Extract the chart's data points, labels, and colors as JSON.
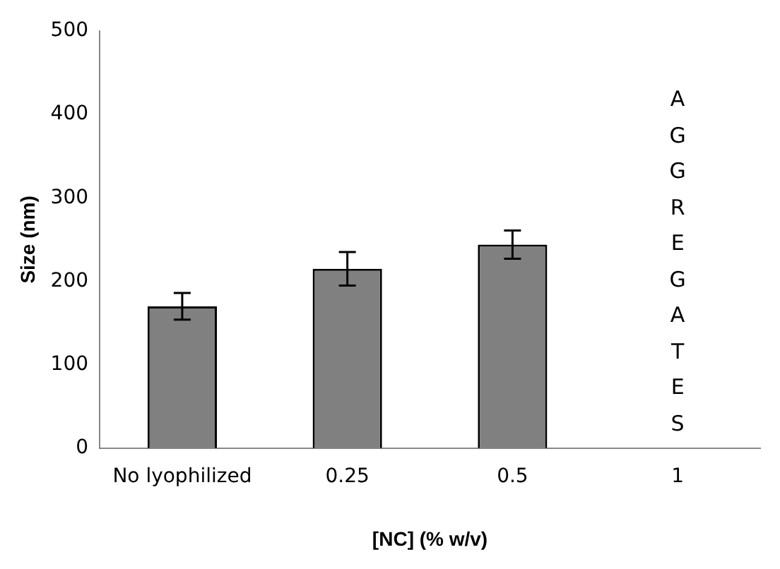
{
  "chart_data": {
    "type": "bar",
    "xlabel": "[NC] (% w/v)",
    "ylabel": "Size (nm)",
    "categories": [
      "No lyophilized",
      "0.25",
      "0.5",
      "1"
    ],
    "values": [
      170,
      215,
      244,
      null
    ],
    "errors": [
      16,
      20,
      17,
      null
    ],
    "color": "#808080",
    "ylim": [
      0,
      500
    ],
    "yticks": [
      0,
      100,
      200,
      300,
      400,
      500
    ],
    "grid": false,
    "legend": false,
    "annotations": [
      "AGGREGATES"
    ]
  }
}
